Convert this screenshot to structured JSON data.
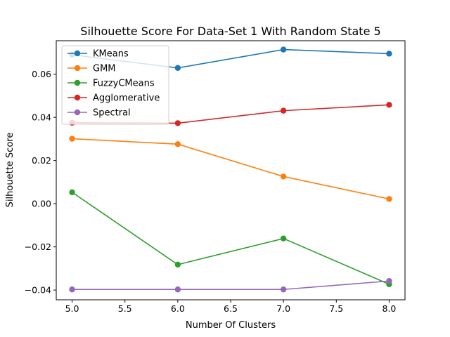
{
  "chart_data": {
    "type": "line",
    "title": "Silhouette Score For Data-Set 1 With Random State 5",
    "xlabel": "Number Of Clusters",
    "ylabel": "Silhouette Score",
    "xlim": [
      4.85,
      8.15
    ],
    "ylim": [
      -0.0445,
      0.0755
    ],
    "xticks": [
      5.0,
      5.5,
      6.0,
      6.5,
      7.0,
      7.5,
      8.0
    ],
    "xtick_labels": [
      "5.0",
      "5.5",
      "6.0",
      "6.5",
      "7.0",
      "7.5",
      "8.0"
    ],
    "yticks": [
      -0.04,
      -0.02,
      0.0,
      0.02,
      0.04,
      0.06
    ],
    "ytick_labels": [
      "−0.04",
      "−0.02",
      "0.00",
      "0.02",
      "0.04",
      "0.06"
    ],
    "grid": false,
    "legend_position": "top-left",
    "x": [
      5,
      6,
      7,
      8
    ],
    "series": [
      {
        "name": "KMeans",
        "color": "#1f77b4",
        "values": [
          0.069,
          0.0629,
          0.0714,
          0.0695
        ]
      },
      {
        "name": "GMM",
        "color": "#ff7f0e",
        "values": [
          0.0301,
          0.0276,
          0.0126,
          0.0022
        ]
      },
      {
        "name": "FuzzyCMeans",
        "color": "#2ca02c",
        "values": [
          0.0053,
          -0.0282,
          -0.0161,
          -0.0373
        ]
      },
      {
        "name": "Agglomerative",
        "color": "#d62728",
        "values": [
          0.0375,
          0.0373,
          0.0431,
          0.0458
        ]
      },
      {
        "name": "Spectral",
        "color": "#9467bd",
        "values": [
          -0.0397,
          -0.0397,
          -0.0397,
          -0.0358
        ]
      }
    ]
  }
}
